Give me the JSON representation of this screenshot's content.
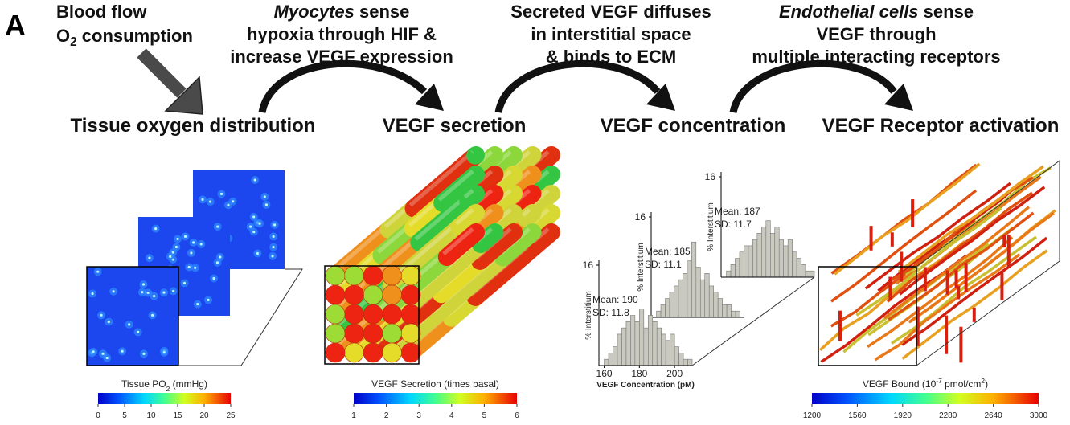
{
  "panel_label": "A",
  "steps": [
    {
      "lines": [
        [
          {
            "text": "Blood flow"
          }
        ],
        [
          {
            "text": "O"
          },
          {
            "text": "2",
            "style": "sub"
          },
          {
            "text": " consumption"
          }
        ]
      ]
    },
    {
      "lines": [
        [
          {
            "text": "Myocytes",
            "style": "italic"
          },
          {
            "text": " sense"
          }
        ],
        [
          {
            "text": "hypoxia through HIF &"
          }
        ],
        [
          {
            "text": "increase VEGF expression"
          }
        ]
      ]
    },
    {
      "lines": [
        [
          {
            "text": "Secreted VEGF diffuses"
          }
        ],
        [
          {
            "text": "in interstitial space"
          }
        ],
        [
          {
            "text": "& binds to ECM"
          }
        ]
      ]
    },
    {
      "lines": [
        [
          {
            "text": "Endothelial cells",
            "style": "italic"
          },
          {
            "text": " sense"
          }
        ],
        [
          {
            "text": "VEGF through"
          }
        ],
        [
          {
            "text": "multiple interacting receptors"
          }
        ]
      ]
    }
  ],
  "stages": [
    "Tissue oxygen distribution",
    "VEGF secretion",
    "VEGF concentration",
    "VEGF Receptor activation"
  ],
  "colorbars": [
    {
      "title": [
        {
          "text": "Tissue PO"
        },
        {
          "text": "2",
          "style": "sub"
        },
        {
          "text": " (mmHg)"
        }
      ],
      "lim": [
        0,
        25
      ],
      "ticks": [
        0,
        5,
        10,
        15,
        20,
        25
      ]
    },
    {
      "title": [
        {
          "text": "VEGF Secretion (times basal)"
        }
      ],
      "lim": [
        1,
        6
      ],
      "ticks": [
        1,
        2,
        3,
        4,
        5,
        6
      ]
    },
    {
      "title": [
        {
          "text": "VEGF Bound (10"
        },
        {
          "text": "-7",
          "style": "sup"
        },
        {
          "text": " pmol/cm"
        },
        {
          "text": "2",
          "style": "sup"
        },
        {
          "text": ")"
        }
      ],
      "lim": [
        1200,
        3000
      ],
      "ticks": [
        1200,
        1560,
        1920,
        2280,
        2640,
        3000
      ]
    }
  ],
  "histograms": {
    "type": "histogram",
    "y_label": "% Interstitium",
    "x_label": "VEGF Concentration (pM)",
    "xlim": [
      157,
      210
    ],
    "xticks": [
      160,
      180,
      200
    ],
    "ylim": [
      0,
      16
    ],
    "yticks": [
      16
    ],
    "bins": [
      160,
      162.5,
      165,
      167.5,
      170,
      172.5,
      175,
      177.5,
      180,
      182.5,
      185,
      187.5,
      190,
      192.5,
      195,
      197.5,
      200,
      202.5,
      205,
      207.5,
      210
    ],
    "plots": [
      {
        "mean_label": "Mean: 190",
        "sd_label": "SD: 11.8",
        "counts": [
          1,
          2,
          3,
          5,
          6,
          7,
          8,
          7,
          9,
          6,
          8,
          7,
          6,
          5,
          4,
          5,
          3,
          2,
          1,
          1
        ]
      },
      {
        "mean_label": "Mean: 185",
        "sd_label": "SD: 11.1",
        "counts": [
          1,
          2,
          3,
          4,
          5,
          6,
          7,
          9,
          12,
          8,
          6,
          7,
          5,
          4,
          3,
          2,
          2,
          1,
          1,
          0
        ]
      },
      {
        "mean_label": "Mean: 187",
        "sd_label": "SD: 11.7",
        "counts": [
          1,
          2,
          3,
          4,
          5,
          5,
          6,
          7,
          8,
          9,
          7,
          8,
          6,
          5,
          6,
          4,
          3,
          2,
          1,
          1
        ]
      }
    ]
  }
}
